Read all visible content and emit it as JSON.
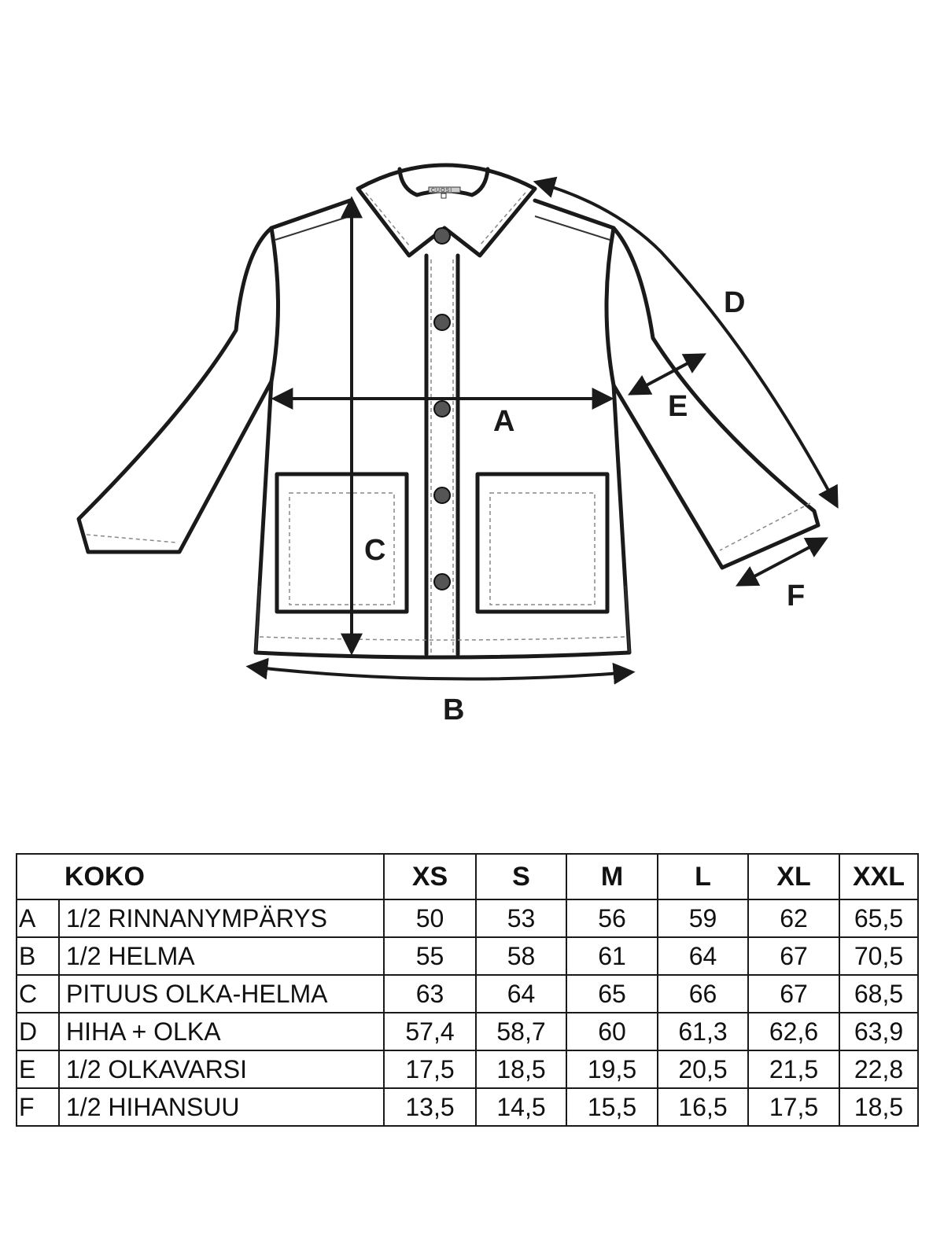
{
  "brand_label": "CUOSI",
  "diagram_labels": {
    "A": "A",
    "B": "B",
    "C": "C",
    "D": "D",
    "E": "E",
    "F": "F"
  },
  "table": {
    "header_label": "KOKO",
    "sizes": [
      "XS",
      "S",
      "M",
      "L",
      "XL",
      "XXL"
    ],
    "rows": [
      {
        "letter": "A",
        "name": "1/2 RINNANYMPÄRYS",
        "values": [
          "50",
          "53",
          "56",
          "59",
          "62",
          "65,5"
        ]
      },
      {
        "letter": "B",
        "name": "1/2 HELMA",
        "values": [
          "55",
          "58",
          "61",
          "64",
          "67",
          "70,5"
        ]
      },
      {
        "letter": "C",
        "name": "PITUUS OLKA-HELMA",
        "values": [
          "63",
          "64",
          "65",
          "66",
          "67",
          "68,5"
        ]
      },
      {
        "letter": "D",
        "name": "HIHA + OLKA",
        "values": [
          "57,4",
          "58,7",
          "60",
          "61,3",
          "62,6",
          "63,9"
        ]
      },
      {
        "letter": "E",
        "name": "1/2 OLKAVARSI",
        "values": [
          "17,5",
          "18,5",
          "19,5",
          "20,5",
          "21,5",
          "22,8"
        ]
      },
      {
        "letter": "F",
        "name": "1/2 HIHANSUU",
        "values": [
          "13,5",
          "14,5",
          "15,5",
          "16,5",
          "17,5",
          "18,5"
        ]
      }
    ]
  }
}
